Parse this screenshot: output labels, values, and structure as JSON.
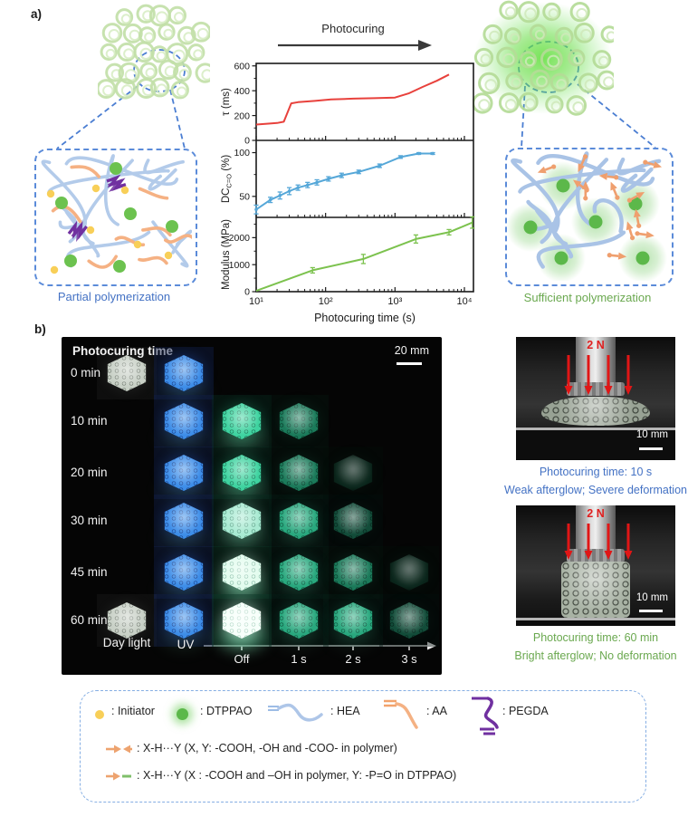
{
  "figure": {
    "panel_a_label": "a)",
    "panel_b_label": "b)"
  },
  "panel_a": {
    "arrow_label": "Photocuring",
    "left_caption": "Partial polymerization",
    "right_caption": "Sufficient polymerization",
    "left_caption_color": "#4472c4",
    "right_caption_color": "#6aa84f"
  },
  "chart_data": {
    "type": "line",
    "x_label": "Photocuring time (s)",
    "x_scale": "log",
    "x_range": [
      10,
      13500
    ],
    "x_ticks": [
      {
        "value": 10,
        "label": "10¹"
      },
      {
        "value": 100,
        "label": "10²"
      },
      {
        "value": 1000,
        "label": "10³"
      },
      {
        "value": 10000,
        "label": "10⁴"
      }
    ],
    "panels": [
      {
        "name": "lifetime",
        "y_label": "τ (ms)",
        "color": "#e8413c",
        "y_range": [
          0,
          620
        ],
        "y_ticks": [
          0,
          200,
          400,
          600
        ],
        "y_minor": [
          100,
          300,
          500
        ],
        "x": [
          10,
          15,
          20,
          25,
          32,
          40,
          70,
          120,
          250,
          500,
          1000,
          1600,
          2500,
          4000,
          6000
        ],
        "y": [
          128,
          135,
          140,
          150,
          298,
          308,
          318,
          330,
          336,
          340,
          345,
          380,
          430,
          480,
          530
        ]
      },
      {
        "name": "conversion",
        "y_label_main": "DC",
        "y_label_sub": "C=O",
        "y_label_unit": " (%)",
        "color": "#55a7d8",
        "y_range": [
          26,
          114
        ],
        "y_ticks": [
          50,
          100
        ],
        "y_minor": [
          75
        ],
        "x": [
          10,
          16,
          22,
          30,
          40,
          55,
          75,
          110,
          170,
          300,
          600,
          1200,
          2200,
          3500
        ],
        "y": [
          35,
          46,
          51,
          56,
          60,
          63,
          66,
          70,
          74,
          78,
          85,
          95,
          99,
          99
        ],
        "err": [
          5,
          3,
          4,
          4,
          3,
          3,
          3,
          2.5,
          2.5,
          2,
          2,
          1.5,
          1,
          1
        ]
      },
      {
        "name": "modulus",
        "y_label": "Modulus (MPa)",
        "color": "#7cc24e",
        "y_range": [
          0,
          2750
        ],
        "y_ticks": [
          0,
          1000,
          2000
        ],
        "y_minor": [
          500,
          1500,
          2500
        ],
        "x": [
          10,
          65,
          350,
          2000,
          6000,
          13000
        ],
        "y": [
          30,
          790,
          1210,
          1950,
          2200,
          2560
        ],
        "err": [
          0,
          100,
          170,
          150,
          100,
          210
        ]
      }
    ]
  },
  "panel_b": {
    "header": "Photocuring time",
    "scale_bar_label": "20 mm",
    "column_labels": [
      "Day light",
      "UV",
      "Off",
      "1 s",
      "2 s",
      "3 s"
    ],
    "rows": [
      {
        "time": "0 min",
        "cubes": [
          {
            "col": 0,
            "style": "daylight"
          },
          {
            "col": 1,
            "style": "uv"
          }
        ]
      },
      {
        "time": "10 min",
        "cubes": [
          {
            "col": 1,
            "style": "uv"
          },
          {
            "col": 2,
            "style": "afterglow-bright"
          },
          {
            "col": 3,
            "style": "afterglow-dim"
          }
        ]
      },
      {
        "time": "20 min",
        "cubes": [
          {
            "col": 1,
            "style": "uv"
          },
          {
            "col": 2,
            "style": "afterglow-bright"
          },
          {
            "col": 3,
            "style": "afterglow-dim"
          },
          {
            "col": 4,
            "style": "afterglow-wisp"
          }
        ]
      },
      {
        "time": "30 min",
        "cubes": [
          {
            "col": 1,
            "style": "uv"
          },
          {
            "col": 2,
            "style": "afterglow-pale"
          },
          {
            "col": 3,
            "style": "afterglow-mid"
          },
          {
            "col": 4,
            "style": "afterglow-faint"
          }
        ]
      },
      {
        "time": "45 min",
        "cubes": [
          {
            "col": 1,
            "style": "uv"
          },
          {
            "col": 2,
            "style": "afterglow-white"
          },
          {
            "col": 3,
            "style": "afterglow-mid"
          },
          {
            "col": 4,
            "style": "afterglow-dim"
          },
          {
            "col": 5,
            "style": "afterglow-wisp"
          }
        ]
      },
      {
        "time": "60 min",
        "cubes": [
          {
            "col": 0,
            "style": "daylight"
          },
          {
            "col": 1,
            "style": "uv"
          },
          {
            "col": 2,
            "style": "afterglow-whitest"
          },
          {
            "col": 3,
            "style": "afterglow-mid"
          },
          {
            "col": 4,
            "style": "afterglow-mid"
          },
          {
            "col": 5,
            "style": "afterglow-faint"
          }
        ]
      }
    ],
    "cube_styles": {
      "daylight": {
        "fill": "#c8d0c6",
        "glow": "rgba(180,190,180,0.18)",
        "tex": "rgba(70,80,70,0.55)",
        "tile": "rgba(255,255,255,0.04)",
        "halo": 0
      },
      "uv": {
        "fill": "#3d8de8",
        "glow": "rgba(45,110,235,0.5)",
        "tex": "rgba(8,25,90,0.5)",
        "tile": "rgba(18,30,70,0.45)",
        "halo": 0.15
      },
      "afterglow-bright": {
        "fill": "#3fd3a0",
        "glow": "rgba(50,205,150,0.45)",
        "tex": "rgba(5,60,40,0.5)",
        "tile": "rgba(8,45,33,0.4)",
        "halo": 0.35
      },
      "afterglow-pale": {
        "fill": "#a8ead2",
        "glow": "rgba(150,235,205,0.5)",
        "tex": "rgba(25,95,70,0.45)",
        "tile": "rgba(8,45,33,0.4)",
        "halo": 0.3
      },
      "afterglow-white": {
        "fill": "#e2fcee",
        "glow": "rgba(200,255,230,0.6)",
        "tex": "rgba(45,125,95,0.4)",
        "tile": "rgba(10,50,36,0.45)",
        "halo": 0.55
      },
      "afterglow-whitest": {
        "fill": "#f6fffa",
        "glow": "rgba(225,255,240,0.75)",
        "tex": "rgba(70,150,115,0.35)",
        "tile": "rgba(12,55,40,0.5)",
        "halo": 0.7
      },
      "afterglow-mid": {
        "fill": "#29a87e",
        "glow": "rgba(35,160,120,0.35)",
        "tex": "rgba(4,48,34,0.55)",
        "tile": "rgba(6,30,22,0.4)",
        "halo": 0.1
      },
      "afterglow-dim": {
        "fill": "#1b7a5a",
        "glow": "rgba(28,115,85,0.28)",
        "tex": "rgba(3,38,27,0.6)",
        "tile": "rgba(4,22,16,0.4)",
        "halo": 0
      },
      "afterglow-faint": {
        "fill": "#124c39",
        "glow": "rgba(18,75,55,0.22)",
        "tex": "rgba(2,24,17,0.6)",
        "tile": "rgba(3,16,12,0.4)",
        "halo": 0
      },
      "afterglow-wisp": {
        "fill": "rgba(24,92,68,0.4)",
        "glow": "rgba(18,75,55,0.18)",
        "tex": "rgba(0,0,0,0)",
        "tile": "rgba(3,14,10,0.35)",
        "halo": 0
      }
    }
  },
  "compression_photos": [
    {
      "force_label": "2 N",
      "scale_bar_label": "10 mm",
      "caption_line1": "Photocuring time: 10 s",
      "caption_line2": "Weak afterglow; Severe deformation",
      "caption_color": "#4472c4",
      "deformed": true
    },
    {
      "force_label": "2 N",
      "scale_bar_label": "10 mm",
      "caption_line1": "Photocuring time: 60 min",
      "caption_line2": "Bright afterglow; No deformation",
      "caption_color": "#6aa84f",
      "deformed": false
    }
  ],
  "legend": {
    "items": [
      {
        "icon": "initiator-icon",
        "label": ": Initiator"
      },
      {
        "icon": "dtppao-icon",
        "label": ": DTPPAO"
      },
      {
        "icon": "hea-icon",
        "label": ": HEA"
      },
      {
        "icon": "aa-icon",
        "label": ": AA"
      },
      {
        "icon": "pegda-icon",
        "label": ": PEGDA"
      }
    ],
    "bond_rows": [
      {
        "icon": "hbond-polymer-icon",
        "label": ": X-H···Y (X, Y: -COOH, -OH and -COO- in polymer)"
      },
      {
        "icon": "hbond-dtppao-icon",
        "label": ": X-H···Y (X : -COOH and –OH in polymer, Y: -P=O in DTPPAO)"
      }
    ],
    "colors": {
      "initiator": "#f8cf58",
      "dtppao": "#5cb84a",
      "hea": "#aec6e8",
      "aa": "#f4b183",
      "pegda": "#7030a0"
    }
  }
}
